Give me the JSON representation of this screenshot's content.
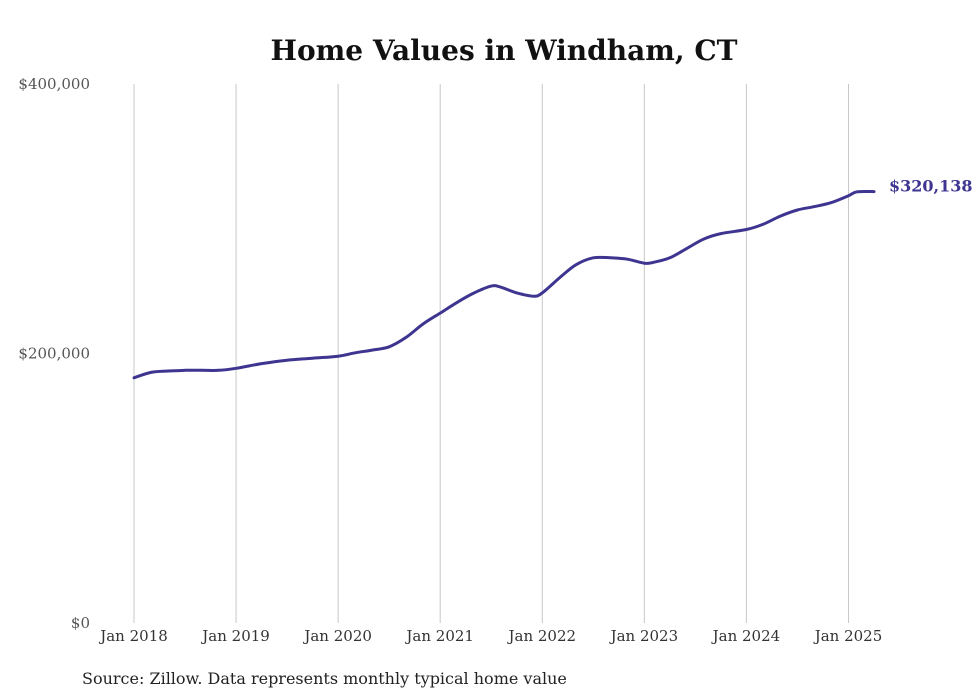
{
  "chart_data": {
    "type": "line",
    "title": "Home Values in Windham, CT",
    "source": "Source: Zillow. Data represents monthly typical home value",
    "ylim": [
      0,
      400000
    ],
    "y_ticks": [
      {
        "value": 0,
        "label": "$0"
      },
      {
        "value": 200000,
        "label": "$200,000"
      },
      {
        "value": 400000,
        "label": "$400,000"
      }
    ],
    "x_ticks": [
      {
        "value": 2018.0,
        "label": "Jan 2018"
      },
      {
        "value": 2019.0,
        "label": "Jan 2019"
      },
      {
        "value": 2020.0,
        "label": "Jan 2020"
      },
      {
        "value": 2021.0,
        "label": "Jan 2021"
      },
      {
        "value": 2022.0,
        "label": "Jan 2022"
      },
      {
        "value": 2023.0,
        "label": "Jan 2023"
      },
      {
        "value": 2024.0,
        "label": "Jan 2024"
      },
      {
        "value": 2025.0,
        "label": "Jan 2025"
      }
    ],
    "xlim": [
      2018.0,
      2025.25
    ],
    "grid": "vertical",
    "line_color": "#3d3590",
    "end_label": "$320,138",
    "series": [
      {
        "x": [
          2018.0,
          2018.167,
          2018.333,
          2018.5,
          2018.667,
          2018.833,
          2019.0,
          2019.25,
          2019.5,
          2019.75,
          2020.0,
          2020.167,
          2020.333,
          2020.5,
          2020.667,
          2020.833,
          2021.0,
          2021.167,
          2021.333,
          2021.5,
          2021.583,
          2021.75,
          2021.917,
          2022.0,
          2022.167,
          2022.333,
          2022.5,
          2022.667,
          2022.833,
          2023.0,
          2023.083,
          2023.25,
          2023.417,
          2023.583,
          2023.75,
          2024.0,
          2024.167,
          2024.333,
          2024.5,
          2024.667,
          2024.833,
          2025.0,
          2025.083,
          2025.25
        ],
        "values": [
          182000,
          186000,
          187000,
          187500,
          187500,
          187500,
          189000,
          192500,
          195000,
          196500,
          198000,
          200500,
          202500,
          205000,
          212000,
          222000,
          230000,
          238000,
          245000,
          250000,
          249500,
          245000,
          242500,
          245000,
          256000,
          266000,
          271000,
          271000,
          270000,
          267000,
          267500,
          271000,
          278000,
          285000,
          289000,
          292000,
          296000,
          302000,
          306500,
          309000,
          312000,
          317000,
          320000,
          320138
        ]
      }
    ]
  }
}
